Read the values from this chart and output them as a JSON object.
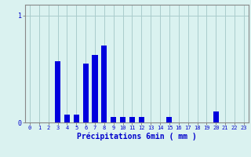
{
  "xlabel": "Précipitations 6min ( mm )",
  "background_color": "#daf2f0",
  "bar_color": "#0000dd",
  "grid_color": "#aacccc",
  "axis_color": "#888888",
  "ylim": [
    0,
    1.1
  ],
  "yticks": [
    0,
    1
  ],
  "hours": [
    0,
    1,
    2,
    3,
    4,
    5,
    6,
    7,
    8,
    9,
    10,
    11,
    12,
    13,
    14,
    15,
    16,
    17,
    18,
    19,
    20,
    21,
    22,
    23
  ],
  "values": [
    0.0,
    0.0,
    0.0,
    0.57,
    0.07,
    0.07,
    0.55,
    0.63,
    0.72,
    0.05,
    0.05,
    0.05,
    0.05,
    0.0,
    0.0,
    0.05,
    0.0,
    0.0,
    0.0,
    0.0,
    0.1,
    0.0,
    0.0,
    0.0
  ],
  "bar_width": 0.6,
  "tick_fontsize": 5.0,
  "xlabel_fontsize": 7.0
}
